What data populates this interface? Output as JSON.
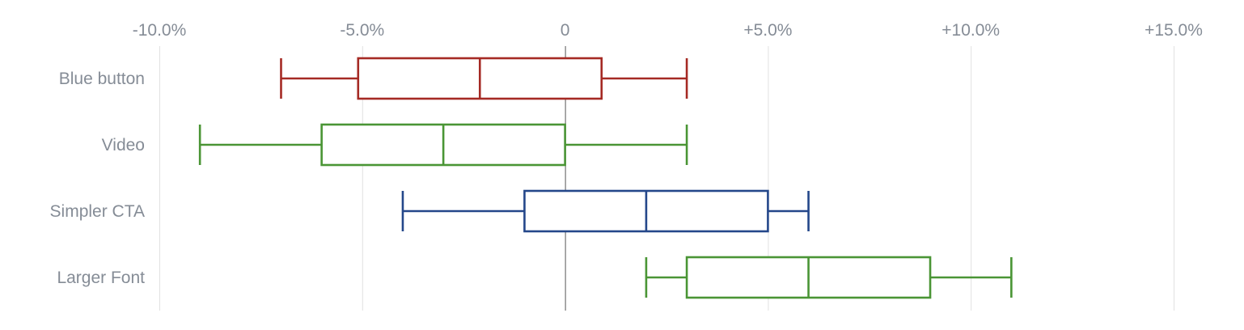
{
  "chart_data": {
    "type": "boxplot",
    "orientation": "horizontal",
    "xlim": [
      -10,
      15
    ],
    "x_ticks": [
      {
        "value": -10,
        "label": "-10.0%"
      },
      {
        "value": -5,
        "label": "-5.0%"
      },
      {
        "value": 0,
        "label": "0"
      },
      {
        "value": 5,
        "label": "+5.0%"
      },
      {
        "value": 10,
        "label": "+10.0%"
      },
      {
        "value": 15,
        "label": "+15.0%"
      }
    ],
    "x_axis_position": "top",
    "grid": true,
    "zero_line": true,
    "categories": [
      "Blue button",
      "Video",
      "Simpler CTA",
      "Larger Font"
    ],
    "boxes": [
      {
        "category": "Blue button",
        "min": -7,
        "q1": -5.1,
        "median": -2.1,
        "q3": 0.9,
        "max": 3,
        "color": "#a52a24"
      },
      {
        "category": "Video",
        "min": -9,
        "q1": -6,
        "median": -3,
        "q3": 0,
        "max": 3,
        "color": "#4a9535"
      },
      {
        "category": "Simpler CTA",
        "min": -4,
        "q1": -1,
        "median": 2,
        "q3": 5,
        "max": 6,
        "color": "#24478a"
      },
      {
        "category": "Larger Font",
        "min": 2,
        "q1": 3,
        "median": 6,
        "q3": 9,
        "max": 11,
        "color": "#4a9535"
      }
    ]
  }
}
